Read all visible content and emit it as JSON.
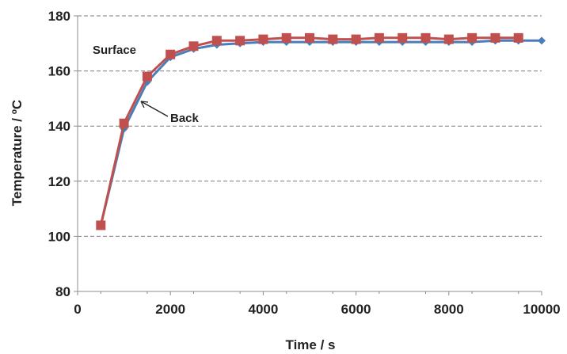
{
  "chart_data": {
    "type": "line",
    "xlabel": "Time / s",
    "ylabel": "Temperature / ºC",
    "xlim": [
      0,
      10000
    ],
    "ylim": [
      80,
      180
    ],
    "x_ticks": [
      0,
      2000,
      4000,
      6000,
      8000,
      10000
    ],
    "y_ticks": [
      80,
      100,
      120,
      140,
      160,
      180
    ],
    "x_tick_labels": [
      "0",
      "2000",
      "4000",
      "6000",
      "8000",
      "10000"
    ],
    "y_tick_labels": [
      "80",
      "100",
      "120",
      "140",
      "160",
      "180"
    ],
    "grid": "horizontal",
    "annotations": {
      "surface": "Surface",
      "back": "Back"
    },
    "series": [
      {
        "name": "Back",
        "color": "#4a7ebb",
        "marker": "diamond",
        "x": [
          500,
          1000,
          1500,
          2000,
          2500,
          3000,
          3500,
          4000,
          4500,
          5000,
          5500,
          6000,
          6500,
          7000,
          7500,
          8000,
          8500,
          9000,
          9500,
          10000
        ],
        "y": [
          104,
          139,
          156,
          165,
          168,
          169.5,
          170,
          170.5,
          170.5,
          170.5,
          170.5,
          170.5,
          170.5,
          170.5,
          170.5,
          170.5,
          170.5,
          171,
          171,
          171
        ]
      },
      {
        "name": "Surface",
        "color": "#c0504d",
        "marker": "square",
        "x": [
          500,
          1000,
          1500,
          2000,
          2500,
          3000,
          3500,
          4000,
          4500,
          5000,
          5500,
          6000,
          6500,
          7000,
          7500,
          8000,
          8500,
          9000,
          9500
        ],
        "y": [
          104,
          141,
          158,
          166,
          169,
          171,
          171,
          171.5,
          172,
          172,
          171.5,
          171.5,
          172,
          172,
          172,
          171.5,
          172,
          172,
          172
        ]
      }
    ]
  }
}
